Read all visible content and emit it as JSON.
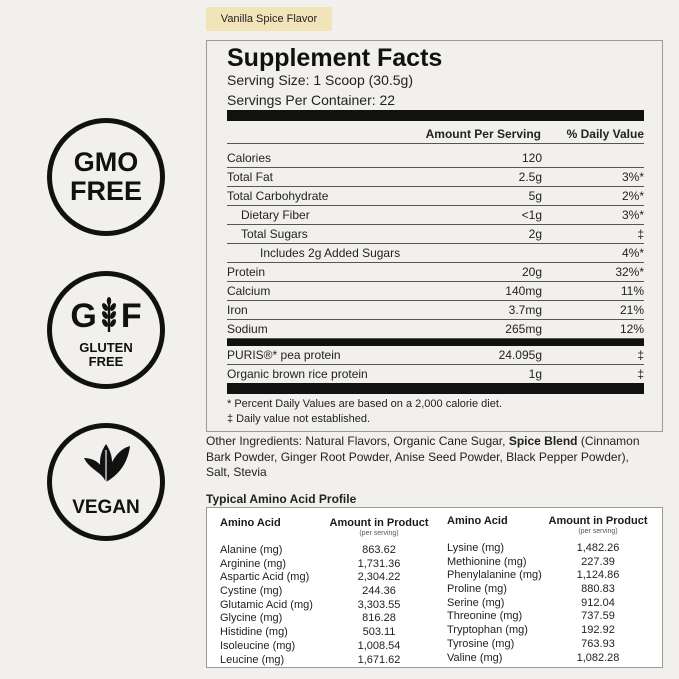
{
  "badges": {
    "gmo": {
      "line1": "GMO",
      "line2": "FREE"
    },
    "gluten": {
      "left": "G",
      "right": "F",
      "line1": "GLUTEN",
      "line2": "FREE"
    },
    "vegan": {
      "label": "VEGAN"
    }
  },
  "flavor_tag": "Vanilla Spice Flavor",
  "facts": {
    "title": "Supplement Facts",
    "serving_size": "Serving Size: 1 Scoop (30.5g)",
    "servings_per_container": "Servings Per Container: 22",
    "col_amount": "Amount Per Serving",
    "col_dv": "% Daily Value",
    "rows": [
      {
        "name": "Calories",
        "amount": "120",
        "dv": ""
      },
      {
        "name": "Total Fat",
        "amount": "2.5g",
        "dv": "3%*"
      },
      {
        "name": "Total Carbohydrate",
        "amount": "5g",
        "dv": "2%*"
      },
      {
        "name": "Dietary Fiber",
        "amount": "<1g",
        "dv": "3%*"
      },
      {
        "name": "Total Sugars",
        "amount": "2g",
        "dv": "‡"
      },
      {
        "name": "Includes 2g Added Sugars",
        "amount": "",
        "dv": "4%*"
      },
      {
        "name": "Protein",
        "amount": "20g",
        "dv": "32%*"
      },
      {
        "name": "Calcium",
        "amount": "140mg",
        "dv": "11%"
      },
      {
        "name": "Iron",
        "amount": "3.7mg",
        "dv": "21%"
      },
      {
        "name": "Sodium",
        "amount": "265mg",
        "dv": "12%"
      },
      {
        "name": "PURIS®* pea protein",
        "amount": "24.095g",
        "dv": "‡"
      },
      {
        "name": "Organic brown rice protein",
        "amount": "1g",
        "dv": "‡"
      }
    ],
    "footnote_1": "* Percent Daily Values are based on a 2,000 calorie diet.",
    "footnote_2": "‡ Daily value not established."
  },
  "other_ingredients": {
    "prefix": "Other Ingredients: Natural Flavors, Organic Cane Sugar, ",
    "bold": "Spice Blend",
    "suffix": " (Cinnamon Bark Powder, Ginger Root Powder, Anise Seed Powder, Black Pepper Powder), Salt, Stevia"
  },
  "amino": {
    "title": "Typical Amino Acid Profile",
    "col_name": "Amino Acid",
    "col_amount": "Amount in Product",
    "col_sub": "(per serving)",
    "left": [
      {
        "name": "Alanine (mg)",
        "value": "863.62"
      },
      {
        "name": "Arginine (mg)",
        "value": "1,731.36"
      },
      {
        "name": "Aspartic Acid (mg)",
        "value": "2,304.22"
      },
      {
        "name": "Cystine (mg)",
        "value": "244.36"
      },
      {
        "name": "Glutamic Acid (mg)",
        "value": "3,303.55"
      },
      {
        "name": "Glycine (mg)",
        "value": "816.28"
      },
      {
        "name": "Histidine (mg)",
        "value": "503.11"
      },
      {
        "name": "Isoleucine (mg)",
        "value": "1,008.54"
      },
      {
        "name": "Leucine (mg)",
        "value": "1,671.62"
      }
    ],
    "right": [
      {
        "name": "Lysine (mg)",
        "value": "1,482.26"
      },
      {
        "name": "Methionine (mg)",
        "value": "227.39"
      },
      {
        "name": "Phenylalanine (mg)",
        "value": "1,124.86"
      },
      {
        "name": "Proline (mg)",
        "value": "880.83"
      },
      {
        "name": "Serine (mg)",
        "value": "912.04"
      },
      {
        "name": "Threonine (mg)",
        "value": "737.59"
      },
      {
        "name": "Tryptophan (mg)",
        "value": "192.92"
      },
      {
        "name": "Tyrosine (mg)",
        "value": "763.93"
      },
      {
        "name": "Valine (mg)",
        "value": "1,082.28"
      }
    ]
  }
}
